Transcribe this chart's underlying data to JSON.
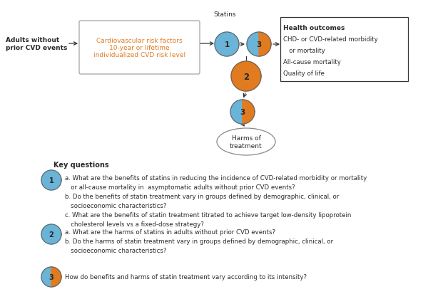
{
  "fig_width": 6.07,
  "fig_height": 4.14,
  "dpi": 100,
  "background_color": "#ffffff",
  "adults_text": "Adults without\nprior CVD events",
  "box_text": "Cardiovascular risk factors\n10-year or lifetime\nindividualized CVD risk level",
  "statins_label": "Statins",
  "outcomes_title": "Health outcomes",
  "outcomes_lines": [
    "CHD- or CVD-related morbidity",
    "   or mortality",
    "All-cause mortality",
    "Quality of life"
  ],
  "blue_color": "#6ab4d8",
  "orange_color": "#e07b20",
  "dark_text": "#2a2a2a",
  "box_edge_gray": "#999999",
  "outcomes_edge": "#333333",
  "arrow_color": "#333333",
  "harms_edge": "#888888",
  "kq_title": "Key questions",
  "kq1_text_a": "a. What are the benefits of statins in reducing the incidence of CVD-related morbidity or mortality",
  "kq1_text_a2": "   or all-cause mortality in  asymptomatic adults without prior CVD events?",
  "kq1_text_b": "b. Do the benefits of statin treatment vary in groups defined by demographic, clinical, or",
  "kq1_text_b2": "   socioeconomic characteristics?",
  "kq1_text_c": "c. What are the benefits of statin treatment titrated to achieve target low-density lipoprotein",
  "kq1_text_c2": "   cholesterol levels vs a fixed-dose strategy?",
  "kq2_text_a": "a. What are the harms of statins in adults without prior CVD events?",
  "kq2_text_b": "b. Do the harms of statin treatment vary in groups defined by demographic, clinical, or",
  "kq2_text_b2": "   socioeconomic characteristics?",
  "kq3_text": "How do benefits and harms of statin treatment vary according to its intensity?",
  "font_size": 6.5,
  "font_size_kq_title": 7.0,
  "font_size_bold": 6.5
}
